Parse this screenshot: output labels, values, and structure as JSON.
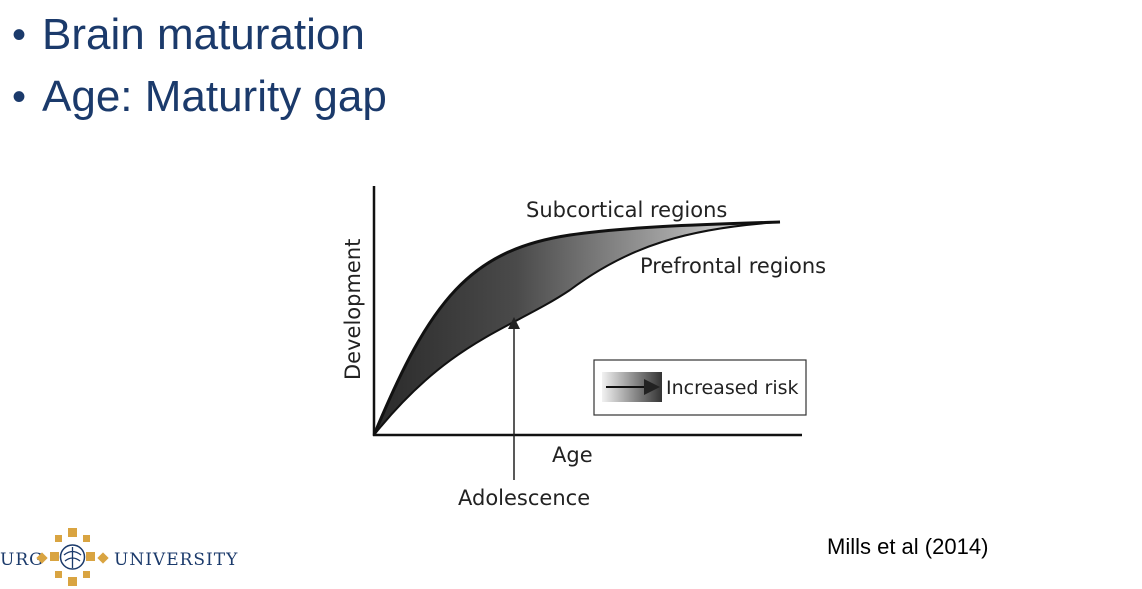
{
  "slide": {
    "bullets": [
      {
        "text": "Brain maturation"
      },
      {
        "text": "Age: Maturity gap"
      }
    ],
    "bullet_glyph": "•",
    "text_color": "#1b3a6b"
  },
  "figure": {
    "labels": {
      "subcortical": "Subcortical regions",
      "prefrontal": "Prefrontal regions",
      "y_axis": "Development",
      "x_axis": "Age",
      "adolescence": "Adolescence",
      "legend": "Increased risk"
    }
  },
  "citation": "Mills et al (2014)",
  "logo": {
    "left_text": "URG",
    "right_text": "UNIVERSITY",
    "accent_color": "#d9a441",
    "text_color": "#1b3a6b"
  }
}
